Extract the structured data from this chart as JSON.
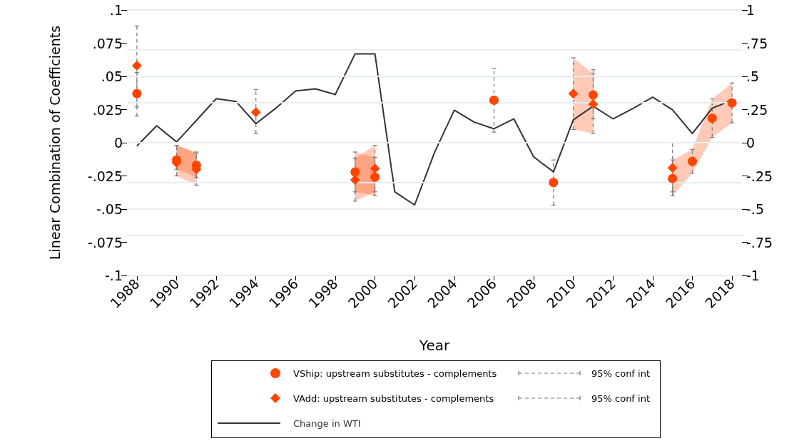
{
  "chart_data": {
    "type": "scatter",
    "xlabel": "Year",
    "ylabel": "Linear Combination of Coefficients",
    "x": [
      1988,
      1989,
      1990,
      1991,
      1992,
      1993,
      1994,
      1995,
      1996,
      1997,
      1998,
      1999,
      2000,
      2001,
      2002,
      2003,
      2004,
      2005,
      2006,
      2007,
      2008,
      2009,
      2010,
      2011,
      2012,
      2013,
      2014,
      2015,
      2016,
      2017,
      2018
    ],
    "xlim": [
      1987.5,
      2018.5
    ],
    "xticks": [
      1988,
      1990,
      1992,
      1994,
      1996,
      1998,
      2000,
      2002,
      2004,
      2006,
      2008,
      2010,
      2012,
      2014,
      2016,
      2018
    ],
    "ylim": [
      -0.1,
      0.1
    ],
    "yticks": [
      {
        "value": -0.1,
        "label": "-.1"
      },
      {
        "value": -0.075,
        "label": "-.075"
      },
      {
        "value": -0.05,
        "label": "-.05"
      },
      {
        "value": -0.025,
        "label": "-.025"
      },
      0,
      {
        "value": 0.025,
        "label": ".025"
      },
      {
        "value": 0.05,
        "label": ".05"
      },
      {
        "value": 0.075,
        "label": ".075"
      },
      {
        "value": 0.1,
        "label": ".1"
      }
    ],
    "y2lim": [
      -1,
      1
    ],
    "y2ticks": [
      -1,
      {
        "value": -0.75,
        "label": "-.75"
      },
      {
        "value": -0.5,
        "label": "-.5"
      },
      {
        "value": -0.25,
        "label": "-.25"
      },
      0,
      {
        "value": 0.25,
        "label": ".25"
      },
      {
        "value": 0.5,
        "label": ".5"
      },
      {
        "value": 0.75,
        "label": ".75"
      },
      1
    ],
    "grid": "y",
    "legend": "bottom",
    "annotations": [
      "95% conf int",
      "95% conf int"
    ],
    "series": [
      {
        "name": "VShip: upstream substitutes - complements",
        "marker": "circle",
        "color": "#ff4500",
        "lower": [
          null,
          null,
          -0.02,
          -0.026,
          null,
          null,
          null,
          null,
          null,
          null,
          null,
          -0.037,
          -0.04,
          null,
          null,
          null,
          null,
          null,
          null,
          null,
          null,
          null,
          null,
          null,
          null,
          null,
          null,
          -0.04,
          -0.023,
          0.004,
          0.015
        ],
        "upper": [
          null,
          null,
          -0.002,
          -0.007,
          null,
          null,
          null,
          null,
          null,
          null,
          null,
          -0.007,
          -0.011,
          null,
          null,
          null,
          null,
          null,
          null,
          null,
          null,
          null,
          null,
          null,
          null,
          null,
          null,
          -0.013,
          -0.005,
          0.033,
          0.045
        ],
        "values": [
          0.037,
          null,
          -0.013,
          -0.017,
          null,
          null,
          null,
          null,
          null,
          null,
          null,
          -0.022,
          -0.026,
          null,
          null,
          null,
          null,
          null,
          0.032,
          null,
          null,
          -0.03,
          null,
          0.036,
          null,
          null,
          null,
          -0.027,
          -0.014,
          0.0185,
          0.03
        ],
        "errors": [
          [
            0.02,
            0.053
          ],
          null,
          [
            -0.02,
            -0.002
          ],
          [
            -0.026,
            -0.007
          ],
          null,
          null,
          null,
          null,
          null,
          null,
          null,
          [
            -0.037,
            -0.007
          ],
          [
            -0.04,
            -0.011
          ],
          null,
          null,
          null,
          null,
          null,
          [
            0.008,
            0.056
          ],
          null,
          null,
          [
            -0.047,
            -0.013
          ],
          null,
          [
            0.018,
            0.055
          ],
          null,
          null,
          null,
          [
            -0.04,
            -0.013
          ],
          [
            -0.023,
            -0.005
          ],
          [
            0.004,
            0.033
          ],
          [
            0.015,
            0.045
          ]
        ]
      },
      {
        "name": "VAdd: upstream substitutes - complements",
        "marker": "diamond",
        "color": "#ff4500",
        "lower": [
          null,
          null,
          -0.025,
          -0.032,
          null,
          null,
          null,
          null,
          null,
          null,
          null,
          -0.044,
          -0.037,
          null,
          null,
          null,
          null,
          null,
          null,
          null,
          null,
          null,
          0.01,
          0.007,
          null,
          null,
          null,
          null,
          null,
          null,
          null
        ],
        "upper": [
          null,
          null,
          -0.002,
          -0.008,
          null,
          null,
          null,
          null,
          null,
          null,
          null,
          -0.012,
          -0.002,
          null,
          null,
          null,
          null,
          null,
          null,
          null,
          null,
          null,
          0.064,
          0.052,
          null,
          null,
          null,
          null,
          null,
          null,
          null
        ],
        "values": [
          0.058,
          null,
          -0.015,
          -0.02,
          null,
          null,
          0.023,
          null,
          null,
          null,
          null,
          -0.028,
          -0.0195,
          null,
          null,
          null,
          null,
          null,
          null,
          null,
          null,
          null,
          0.037,
          0.029,
          null,
          null,
          null,
          -0.019,
          null,
          null,
          null
        ],
        "errors": [
          [
            0.027,
            0.088
          ],
          null,
          [
            -0.025,
            -0.002
          ],
          [
            -0.032,
            -0.008
          ],
          null,
          null,
          [
            0.007,
            0.04
          ],
          null,
          null,
          null,
          null,
          [
            -0.044,
            -0.012
          ],
          [
            -0.037,
            -0.002
          ],
          null,
          null,
          null,
          null,
          null,
          null,
          null,
          null,
          null,
          [
            0.01,
            0.064
          ],
          [
            0.007,
            0.052
          ],
          null,
          null,
          null,
          [
            -0.037,
            0
          ],
          null,
          null,
          null
        ]
      },
      {
        "name": "Change in WTI",
        "type": "line",
        "axis": "y2",
        "marker": "none",
        "color": "#333333",
        "values": [
          -0.024,
          0.128,
          0.006,
          0.168,
          0.332,
          0.31,
          0.144,
          0.26,
          0.39,
          0.406,
          0.363,
          0.67,
          0.67,
          -0.37,
          -0.469,
          -0.075,
          0.245,
          0.155,
          0.105,
          0.18,
          -0.106,
          -0.22,
          0.173,
          0.275,
          0.18,
          0.257,
          0.343,
          0.248,
          0.069,
          0.26,
          0.32
        ]
      }
    ]
  }
}
